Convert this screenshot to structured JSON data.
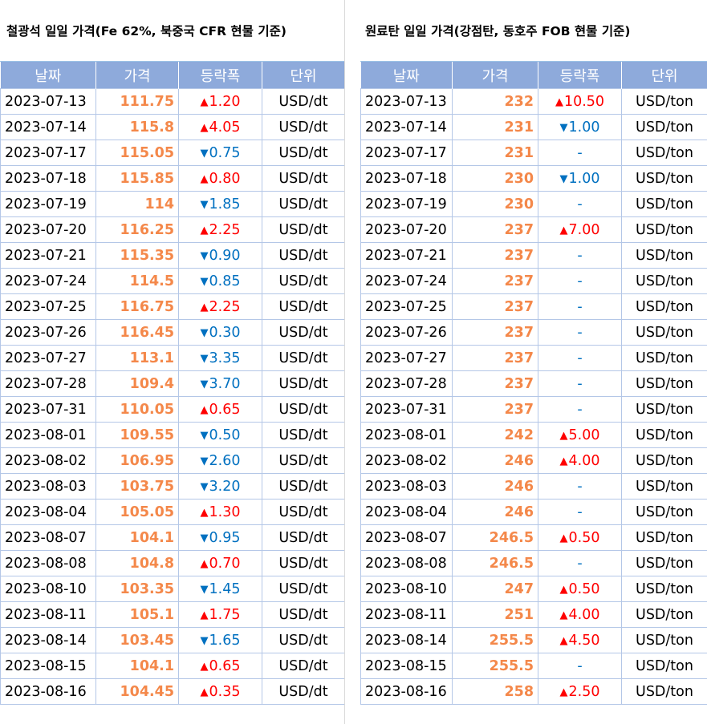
{
  "colors": {
    "header_bg": "#8eaadb",
    "price": "#f4884a",
    "up": "#ff0000",
    "down": "#0070c0",
    "grid": "#b4c7e7"
  },
  "left": {
    "title": "철광석 일일 가격(Fe 62%, 북중국 CFR 현물 기준)",
    "headers": [
      "날짜",
      "가격",
      "등락폭",
      "단위"
    ],
    "rows": [
      {
        "date": "2023-07-13",
        "price": "111.75",
        "dir": "up",
        "change": "1.20",
        "unit": "USD/dt"
      },
      {
        "date": "2023-07-14",
        "price": "115.8",
        "dir": "up",
        "change": "4.05",
        "unit": "USD/dt"
      },
      {
        "date": "2023-07-17",
        "price": "115.05",
        "dir": "down",
        "change": "0.75",
        "unit": "USD/dt"
      },
      {
        "date": "2023-07-18",
        "price": "115.85",
        "dir": "up",
        "change": "0.80",
        "unit": "USD/dt"
      },
      {
        "date": "2023-07-19",
        "price": "114",
        "dir": "down",
        "change": "1.85",
        "unit": "USD/dt"
      },
      {
        "date": "2023-07-20",
        "price": "116.25",
        "dir": "up",
        "change": "2.25",
        "unit": "USD/dt"
      },
      {
        "date": "2023-07-21",
        "price": "115.35",
        "dir": "down",
        "change": "0.90",
        "unit": "USD/dt"
      },
      {
        "date": "2023-07-24",
        "price": "114.5",
        "dir": "down",
        "change": "0.85",
        "unit": "USD/dt"
      },
      {
        "date": "2023-07-25",
        "price": "116.75",
        "dir": "up",
        "change": "2.25",
        "unit": "USD/dt"
      },
      {
        "date": "2023-07-26",
        "price": "116.45",
        "dir": "down",
        "change": "0.30",
        "unit": "USD/dt"
      },
      {
        "date": "2023-07-27",
        "price": "113.1",
        "dir": "down",
        "change": "3.35",
        "unit": "USD/dt"
      },
      {
        "date": "2023-07-28",
        "price": "109.4",
        "dir": "down",
        "change": "3.70",
        "unit": "USD/dt"
      },
      {
        "date": "2023-07-31",
        "price": "110.05",
        "dir": "up",
        "change": "0.65",
        "unit": "USD/dt"
      },
      {
        "date": "2023-08-01",
        "price": "109.55",
        "dir": "down",
        "change": "0.50",
        "unit": "USD/dt"
      },
      {
        "date": "2023-08-02",
        "price": "106.95",
        "dir": "down",
        "change": "2.60",
        "unit": "USD/dt"
      },
      {
        "date": "2023-08-03",
        "price": "103.75",
        "dir": "down",
        "change": "3.20",
        "unit": "USD/dt"
      },
      {
        "date": "2023-08-04",
        "price": "105.05",
        "dir": "up",
        "change": "1.30",
        "unit": "USD/dt"
      },
      {
        "date": "2023-08-07",
        "price": "104.1",
        "dir": "down",
        "change": "0.95",
        "unit": "USD/dt"
      },
      {
        "date": "2023-08-08",
        "price": "104.8",
        "dir": "up",
        "change": "0.70",
        "unit": "USD/dt"
      },
      {
        "date": "2023-08-10",
        "price": "103.35",
        "dir": "down",
        "change": "1.45",
        "unit": "USD/dt"
      },
      {
        "date": "2023-08-11",
        "price": "105.1",
        "dir": "up",
        "change": "1.75",
        "unit": "USD/dt"
      },
      {
        "date": "2023-08-14",
        "price": "103.45",
        "dir": "down",
        "change": "1.65",
        "unit": "USD/dt"
      },
      {
        "date": "2023-08-15",
        "price": "104.1",
        "dir": "up",
        "change": "0.65",
        "unit": "USD/dt"
      },
      {
        "date": "2023-08-16",
        "price": "104.45",
        "dir": "up",
        "change": "0.35",
        "unit": "USD/dt"
      }
    ]
  },
  "right": {
    "title": "원료탄 일일 가격(강점탄, 동호주 FOB 현물 기준)",
    "headers": [
      "날짜",
      "가격",
      "등락폭",
      "단위"
    ],
    "rows": [
      {
        "date": "2023-07-13",
        "price": "232",
        "dir": "up",
        "change": "10.50",
        "unit": "USD/ton"
      },
      {
        "date": "2023-07-14",
        "price": "231",
        "dir": "down",
        "change": "1.00",
        "unit": "USD/ton"
      },
      {
        "date": "2023-07-17",
        "price": "231",
        "dir": "flat",
        "change": "-",
        "unit": "USD/ton"
      },
      {
        "date": "2023-07-18",
        "price": "230",
        "dir": "down",
        "change": "1.00",
        "unit": "USD/ton"
      },
      {
        "date": "2023-07-19",
        "price": "230",
        "dir": "flat",
        "change": "-",
        "unit": "USD/ton"
      },
      {
        "date": "2023-07-20",
        "price": "237",
        "dir": "up",
        "change": "7.00",
        "unit": "USD/ton"
      },
      {
        "date": "2023-07-21",
        "price": "237",
        "dir": "flat",
        "change": "-",
        "unit": "USD/ton"
      },
      {
        "date": "2023-07-24",
        "price": "237",
        "dir": "flat",
        "change": "-",
        "unit": "USD/ton"
      },
      {
        "date": "2023-07-25",
        "price": "237",
        "dir": "flat",
        "change": "-",
        "unit": "USD/ton"
      },
      {
        "date": "2023-07-26",
        "price": "237",
        "dir": "flat",
        "change": "-",
        "unit": "USD/ton"
      },
      {
        "date": "2023-07-27",
        "price": "237",
        "dir": "flat",
        "change": "-",
        "unit": "USD/ton"
      },
      {
        "date": "2023-07-28",
        "price": "237",
        "dir": "flat",
        "change": "-",
        "unit": "USD/ton"
      },
      {
        "date": "2023-07-31",
        "price": "237",
        "dir": "flat",
        "change": "-",
        "unit": "USD/ton"
      },
      {
        "date": "2023-08-01",
        "price": "242",
        "dir": "up",
        "change": "5.00",
        "unit": "USD/ton"
      },
      {
        "date": "2023-08-02",
        "price": "246",
        "dir": "up",
        "change": "4.00",
        "unit": "USD/ton"
      },
      {
        "date": "2023-08-03",
        "price": "246",
        "dir": "flat",
        "change": "-",
        "unit": "USD/ton"
      },
      {
        "date": "2023-08-04",
        "price": "246",
        "dir": "flat",
        "change": "-",
        "unit": "USD/ton"
      },
      {
        "date": "2023-08-07",
        "price": "246.5",
        "dir": "up",
        "change": "0.50",
        "unit": "USD/ton"
      },
      {
        "date": "2023-08-08",
        "price": "246.5",
        "dir": "flat",
        "change": "-",
        "unit": "USD/ton"
      },
      {
        "date": "2023-08-10",
        "price": "247",
        "dir": "up",
        "change": "0.50",
        "unit": "USD/ton"
      },
      {
        "date": "2023-08-11",
        "price": "251",
        "dir": "up",
        "change": "4.00",
        "unit": "USD/ton"
      },
      {
        "date": "2023-08-14",
        "price": "255.5",
        "dir": "up",
        "change": "4.50",
        "unit": "USD/ton"
      },
      {
        "date": "2023-08-15",
        "price": "255.5",
        "dir": "flat",
        "change": "-",
        "unit": "USD/ton"
      },
      {
        "date": "2023-08-16",
        "price": "258",
        "dir": "up",
        "change": "2.50",
        "unit": "USD/ton"
      }
    ]
  }
}
